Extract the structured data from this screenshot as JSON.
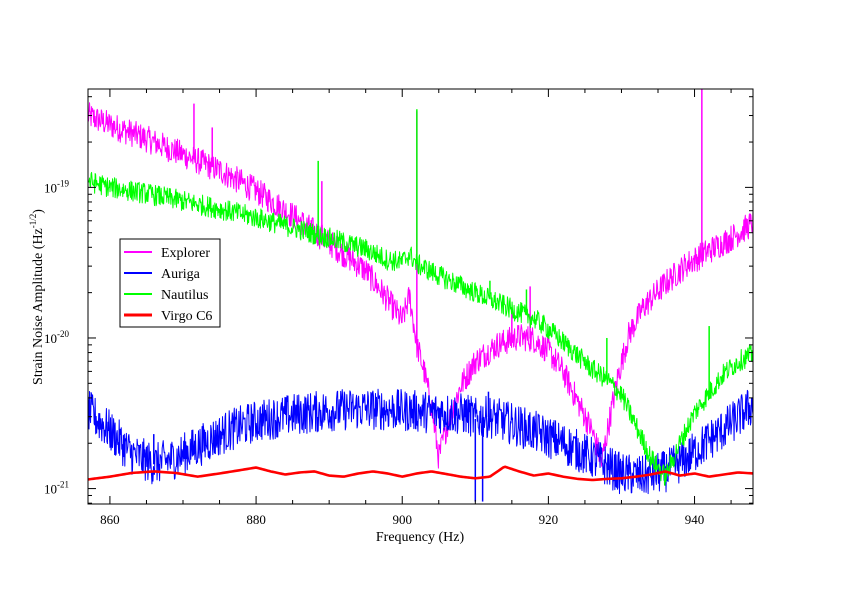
{
  "chart_data": {
    "type": "line",
    "xlabel": "Frequency (Hz)",
    "ylabel": "Strain Noise Amplitude (Hz",
    "ylabel_unit_exponent": "-1/2",
    "ylabel_close": ")",
    "xlim": [
      857,
      948
    ],
    "ylim": [
      7.9e-22,
      4.5e-19
    ],
    "yscale": "log",
    "grid": false,
    "legend_position": "left-middle",
    "x_ticks": [
      {
        "value": 860,
        "label": "860"
      },
      {
        "value": 880,
        "label": "880"
      },
      {
        "value": 900,
        "label": "900"
      },
      {
        "value": 920,
        "label": "920"
      },
      {
        "value": 940,
        "label": "940"
      }
    ],
    "y_ticks": [
      {
        "value": 1e-21,
        "base": "10",
        "exp": "-21"
      },
      {
        "value": 1e-20,
        "base": "10",
        "exp": "-20"
      },
      {
        "value": 1e-19,
        "base": "10",
        "exp": "-19"
      }
    ],
    "series": [
      {
        "name": "Explorer",
        "color": "#ff00ff",
        "noise": 0.09,
        "points": [
          [
            857,
            3e-19
          ],
          [
            860,
            2.6e-19
          ],
          [
            865,
            2.1e-19
          ],
          [
            870,
            1.65e-19
          ],
          [
            875,
            1.3e-19
          ],
          [
            880,
            9.5e-20
          ],
          [
            885,
            6.5e-20
          ],
          [
            890,
            4.3e-20
          ],
          [
            895,
            2.8e-20
          ],
          [
            898,
            1.8e-20
          ],
          [
            900,
            1.3e-20
          ],
          [
            901,
            1.9e-20
          ],
          [
            902,
            9e-21
          ],
          [
            903,
            6e-21
          ],
          [
            904,
            3.5e-21
          ],
          [
            905,
            1.6e-21
          ],
          [
            906,
            2.5e-21
          ],
          [
            908,
            4.8e-21
          ],
          [
            910,
            7e-21
          ],
          [
            913,
            9e-21
          ],
          [
            916,
            1.02e-20
          ],
          [
            918,
            9.8e-21
          ],
          [
            920,
            8.2e-21
          ],
          [
            922,
            6e-21
          ],
          [
            924,
            3.8e-21
          ],
          [
            926,
            2.4e-21
          ],
          [
            927.3,
            1.5e-21
          ],
          [
            928,
            2.3e-21
          ],
          [
            929.5,
            5.5e-21
          ],
          [
            931,
            1.05e-20
          ],
          [
            933,
            1.6e-20
          ],
          [
            936,
            2.3e-20
          ],
          [
            939,
            3.1e-20
          ],
          [
            942,
            3.8e-20
          ],
          [
            945,
            4.6e-20
          ],
          [
            948,
            5.8e-20
          ]
        ],
        "spikes": [
          [
            871.5,
            3.6e-19
          ],
          [
            874,
            2.5e-19
          ],
          [
            889,
            1.1e-19
          ],
          [
            902,
            3.2e-19
          ],
          [
            915,
            1.6e-20
          ],
          [
            917.5,
            2.2e-20
          ],
          [
            941,
            4.5e-19
          ]
        ]
      },
      {
        "name": "Auriga",
        "color": "#0000ff",
        "noise": 0.14,
        "points": [
          [
            857,
            3.3e-21
          ],
          [
            860,
            2.4e-21
          ],
          [
            863,
            1.7e-21
          ],
          [
            866,
            1.45e-21
          ],
          [
            869,
            1.6e-21
          ],
          [
            872,
            1.9e-21
          ],
          [
            876,
            2.4e-21
          ],
          [
            880,
            2.8e-21
          ],
          [
            885,
            3.1e-21
          ],
          [
            890,
            3.3e-21
          ],
          [
            895,
            3.4e-21
          ],
          [
            900,
            3.3e-21
          ],
          [
            905,
            3.2e-21
          ],
          [
            909,
            3.1e-21
          ],
          [
            910,
            2.9e-21
          ],
          [
            912,
            3e-21
          ],
          [
            914,
            2.8e-21
          ],
          [
            918,
            2.4e-21
          ],
          [
            922,
            2e-21
          ],
          [
            926,
            1.6e-21
          ],
          [
            930,
            1.25e-21
          ],
          [
            933,
            1.2e-21
          ],
          [
            936,
            1.3e-21
          ],
          [
            939,
            1.6e-21
          ],
          [
            942,
            2.1e-21
          ],
          [
            945,
            2.7e-21
          ],
          [
            948,
            3.6e-21
          ]
        ],
        "spikes": [
          [
            910,
            8.2e-22
          ],
          [
            911,
            8.2e-22
          ],
          [
            911.8,
            4.4e-21
          ],
          [
            866,
            2.3e-21
          ]
        ]
      },
      {
        "name": "Nautilus",
        "color": "#00ff00",
        "noise": 0.07,
        "points": [
          [
            857,
            1.1e-19
          ],
          [
            860,
            1e-19
          ],
          [
            865,
            9.1e-20
          ],
          [
            870,
            8.1e-20
          ],
          [
            875,
            7.2e-20
          ],
          [
            880,
            6.3e-20
          ],
          [
            885,
            5.4e-20
          ],
          [
            890,
            4.6e-20
          ],
          [
            895,
            3.9e-20
          ],
          [
            898,
            3.3e-20
          ],
          [
            900,
            3.2e-20
          ],
          [
            901,
            3.6e-20
          ],
          [
            902,
            3.1e-20
          ],
          [
            905,
            2.6e-20
          ],
          [
            910,
            2e-20
          ],
          [
            915,
            1.55e-20
          ],
          [
            918,
            1.35e-20
          ],
          [
            920,
            1.15e-20
          ],
          [
            923,
            8.5e-21
          ],
          [
            926,
            6.2e-21
          ],
          [
            928,
            5.3e-21
          ],
          [
            930,
            4.2e-21
          ],
          [
            932,
            2.6e-21
          ],
          [
            934,
            1.6e-21
          ],
          [
            936,
            1.2e-21
          ],
          [
            938,
            2e-21
          ],
          [
            940,
            3.2e-21
          ],
          [
            942,
            4.3e-21
          ],
          [
            944,
            5.8e-21
          ],
          [
            946,
            7e-21
          ],
          [
            948,
            7.8e-21
          ]
        ],
        "spikes": [
          [
            888.5,
            1.5e-19
          ],
          [
            902,
            3.3e-19
          ],
          [
            912,
            2.4e-20
          ],
          [
            917,
            2.1e-20
          ],
          [
            925,
            7.5e-21
          ],
          [
            928,
            1e-20
          ],
          [
            942,
            1.2e-20
          ]
        ]
      },
      {
        "name": "Virgo C6",
        "color": "#ff0000",
        "noise": 0.0,
        "points": [
          [
            857,
            1.15e-21
          ],
          [
            860,
            1.2e-21
          ],
          [
            863,
            1.27e-21
          ],
          [
            866,
            1.3e-21
          ],
          [
            869,
            1.27e-21
          ],
          [
            872,
            1.2e-21
          ],
          [
            875,
            1.26e-21
          ],
          [
            878,
            1.33e-21
          ],
          [
            880,
            1.38e-21
          ],
          [
            882,
            1.3e-21
          ],
          [
            884,
            1.24e-21
          ],
          [
            886,
            1.28e-21
          ],
          [
            888,
            1.3e-21
          ],
          [
            890,
            1.22e-21
          ],
          [
            892,
            1.2e-21
          ],
          [
            894,
            1.26e-21
          ],
          [
            896,
            1.3e-21
          ],
          [
            898,
            1.26e-21
          ],
          [
            900,
            1.2e-21
          ],
          [
            902,
            1.26e-21
          ],
          [
            904,
            1.3e-21
          ],
          [
            906,
            1.25e-21
          ],
          [
            908,
            1.2e-21
          ],
          [
            910,
            1.17e-21
          ],
          [
            912,
            1.2e-21
          ],
          [
            914,
            1.4e-21
          ],
          [
            916,
            1.3e-21
          ],
          [
            918,
            1.22e-21
          ],
          [
            920,
            1.26e-21
          ],
          [
            922,
            1.2e-21
          ],
          [
            924,
            1.16e-21
          ],
          [
            926,
            1.14e-21
          ],
          [
            928,
            1.16e-21
          ],
          [
            930,
            1.17e-21
          ],
          [
            932,
            1.2e-21
          ],
          [
            934,
            1.24e-21
          ],
          [
            936,
            1.3e-21
          ],
          [
            938,
            1.22e-21
          ],
          [
            940,
            1.26e-21
          ],
          [
            942,
            1.2e-21
          ],
          [
            944,
            1.24e-21
          ],
          [
            946,
            1.28e-21
          ],
          [
            948,
            1.26e-21
          ]
        ],
        "spikes": []
      }
    ]
  }
}
